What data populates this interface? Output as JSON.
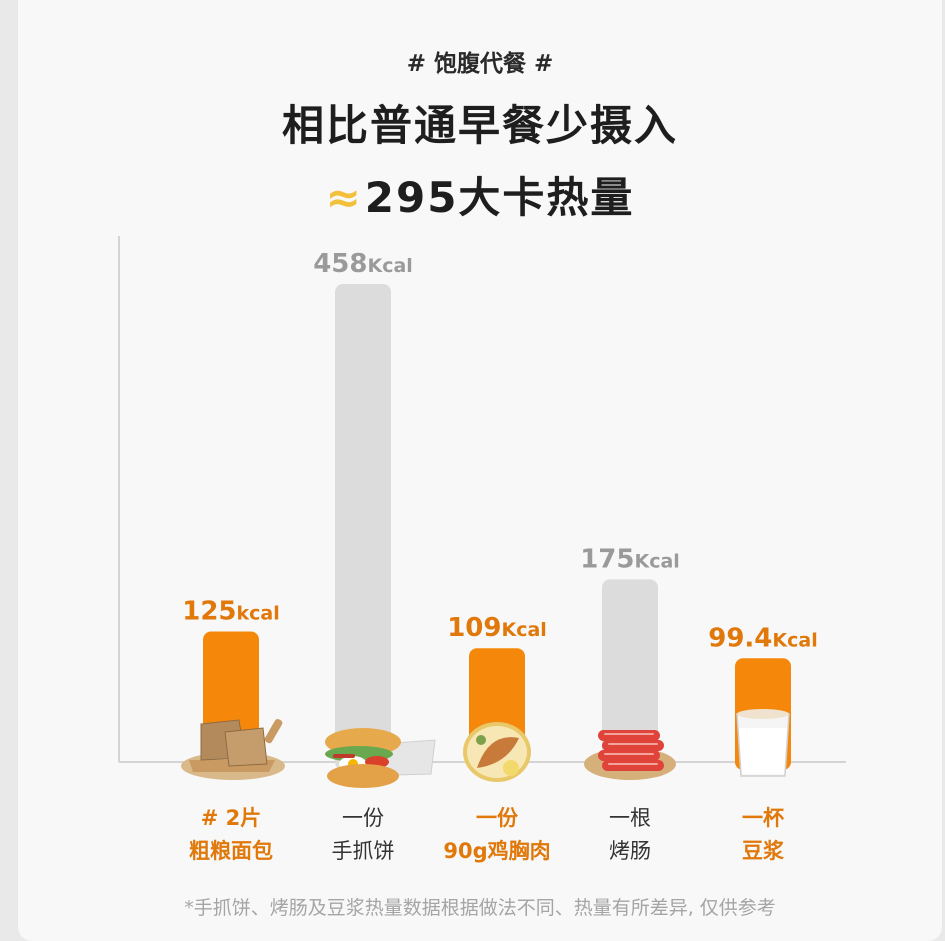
{
  "tag": "# 饱腹代餐 #",
  "headline_line1": "相比普通早餐少摄入",
  "headline_approx": "≈",
  "headline_line2": "295大卡热量",
  "footnote": "*手抓饼、烤肠及豆浆热量数据根据做法不同、热量有所差异, 仅供参考",
  "colors": {
    "highlight": "#f5870a",
    "highlight_text": "#e0780a",
    "muted": "#dcdcdc",
    "muted_text": "#9a9a9a",
    "label_dark": "#333333",
    "axis": "#d4d4d4"
  },
  "chart_data": {
    "type": "bar",
    "title": "",
    "xlabel": "",
    "ylabel": "",
    "ylim": [
      0,
      458
    ],
    "grid": false,
    "categories": [
      "# 2片 粗粮面包",
      "一份 手抓饼",
      "一份 90g鸡胸肉",
      "一根 烤肠",
      "一杯 豆浆"
    ],
    "bars": [
      {
        "line1": "# 2片",
        "line2": "粗粮面包",
        "value": 125,
        "num": "125",
        "unit": "kcal",
        "highlight": true,
        "icon": "bread-icon"
      },
      {
        "line1": "一份",
        "line2": "手抓饼",
        "value": 458,
        "num": "458",
        "unit": "Kcal",
        "highlight": false,
        "icon": "pancake-icon"
      },
      {
        "line1": "一份",
        "line2": "90g鸡胸肉",
        "value": 109,
        "num": "109",
        "unit": "Kcal",
        "highlight": true,
        "icon": "chicken-breast-icon"
      },
      {
        "line1": "一根",
        "line2": "烤肠",
        "value": 175,
        "num": "175",
        "unit": "Kcal",
        "highlight": false,
        "icon": "sausage-icon"
      },
      {
        "line1": "一杯",
        "line2": "豆浆",
        "value": 99.4,
        "num": "99.4",
        "unit": "Kcal",
        "highlight": true,
        "icon": "soy-milk-icon"
      }
    ]
  }
}
